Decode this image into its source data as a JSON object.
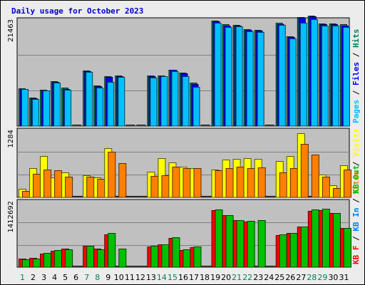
{
  "chart_data": {
    "type": "bar",
    "title": "Daily usage for October 2023",
    "days": [
      "1",
      "2",
      "3",
      "4",
      "5",
      "6",
      "7",
      "8",
      "9",
      "10",
      "11",
      "12",
      "13",
      "14",
      "15",
      "16",
      "17",
      "18",
      "19",
      "20",
      "21",
      "22",
      "23",
      "24",
      "25",
      "26",
      "27",
      "28",
      "29",
      "30",
      "31"
    ],
    "weekend_days": [
      "1",
      "7",
      "8",
      "14",
      "15",
      "21",
      "22",
      "28",
      "29"
    ],
    "colors": {
      "hits": "#00805c",
      "files": "#0000ff",
      "pages": "#00c0ff",
      "visits": "#ffff00",
      "sites": "#ff8000",
      "kbin": "#0080ff",
      "kbout": "#00c000",
      "kbf": "#ff0000",
      "weekday_label": "#000000",
      "weekend_label": "#00805c",
      "plot_bg": "#c0c0c0",
      "grid": "#808080"
    },
    "panels": [
      {
        "name": "hits-files-pages",
        "ymax_label": "21463",
        "ymax": 21463,
        "legend": [
          {
            "text": "Pages",
            "color": "#00c0ff"
          },
          {
            "text": " / ",
            "color": "#000000"
          },
          {
            "text": "Files",
            "color": "#0000ff"
          },
          {
            "text": " / ",
            "color": "#000000"
          },
          {
            "text": "Hits",
            "color": "#00805c"
          }
        ],
        "series": [
          {
            "name": "Hits",
            "color": "#00805c",
            "values": [
              7700,
              5800,
              7400,
              9100,
              7800,
              0,
              11300,
              8200,
              10100,
              10300,
              0,
              0,
              10300,
              10300,
              11500,
              10900,
              8800,
              0,
              21400,
              20700,
              20600,
              19700,
              19600,
              0,
              21000,
              18300,
              22200,
              22500,
              20900,
              20900,
              20700
            ]
          },
          {
            "name": "Files",
            "color": "#0000ff",
            "values": [
              7600,
              5700,
              7300,
              9000,
              7600,
              0,
              11200,
              8100,
              10000,
              10200,
              0,
              0,
              10200,
              10200,
              11400,
              10700,
              8600,
              0,
              21300,
              20500,
              20500,
              19600,
              19400,
              0,
              20800,
              18100,
              22000,
              22300,
              20800,
              20800,
              20500
            ]
          },
          {
            "name": "Pages",
            "color": "#00c0ff",
            "values": [
              7500,
              5500,
              7200,
              8800,
              7400,
              0,
              11000,
              7900,
              9000,
              10000,
              0,
              0,
              9900,
              10100,
              11100,
              10200,
              8000,
              0,
              21000,
              20100,
              20300,
              19300,
              19200,
              0,
              20600,
              17900,
              21100,
              21800,
              20500,
              20500,
              20100
            ]
          }
        ]
      },
      {
        "name": "visits-sites",
        "ymax_label": "1284",
        "ymax": 1284,
        "legend": [
          {
            "text": "Sites",
            "color": "#ff8000"
          },
          {
            "text": " / ",
            "color": "#000000"
          },
          {
            "text": "Visits",
            "color": "#ffff00"
          }
        ],
        "series": [
          {
            "name": "Visits",
            "color": "#ffff00",
            "values": [
              160,
              570,
              800,
              390,
              480,
              0,
              430,
              390,
              950,
              0,
              0,
              0,
              500,
              760,
              680,
              600,
              570,
              0,
              540,
              730,
              750,
              760,
              740,
              0,
              700,
              800,
              1240,
              0,
              440,
              230,
              620
            ]
          },
          {
            "name": "Sites",
            "color": "#ff8000",
            "values": [
              130,
              460,
              540,
              520,
              400,
              0,
              400,
              360,
              880,
              660,
              0,
              0,
              410,
              430,
              590,
              560,
              560,
              0,
              520,
              570,
              590,
              560,
              580,
              0,
              480,
              560,
              1040,
              830,
              400,
              180,
              540
            ]
          }
        ]
      },
      {
        "name": "kb",
        "ymax_label": "1412692",
        "ymax": 1412692,
        "legend": [
          {
            "text": "KB F",
            "color": "#ff0000"
          },
          {
            "text": " / ",
            "color": "#000000"
          },
          {
            "text": "KB In",
            "color": "#0080ff"
          },
          {
            "text": " / ",
            "color": "#000000"
          },
          {
            "text": "KB Out",
            "color": "#00c000"
          }
        ],
        "series": [
          {
            "name": "KB F",
            "color": "#ff0000",
            "values": [
              180000,
              200000,
              300000,
              360000,
              400000,
              0,
              460000,
              400000,
              720000,
              0,
              0,
              0,
              450000,
              500000,
              640000,
              380000,
              440000,
              0,
              1240000,
              1130000,
              1020000,
              1000000,
              0,
              0,
              700000,
              740000,
              880000,
              1230000,
              1240000,
              1180000,
              850000
            ]
          },
          {
            "name": "KB Out",
            "color": "#00c000",
            "values": [
              170000,
              190000,
              310000,
              370000,
              390000,
              0,
              460000,
              390000,
              750000,
              400000,
              0,
              0,
              460000,
              500000,
              650000,
              390000,
              450000,
              0,
              1250000,
              1140000,
              1030000,
              1010000,
              1020000,
              0,
              710000,
              740000,
              880000,
              1250000,
              1270000,
              1180000,
              860000
            ]
          }
        ]
      }
    ]
  }
}
